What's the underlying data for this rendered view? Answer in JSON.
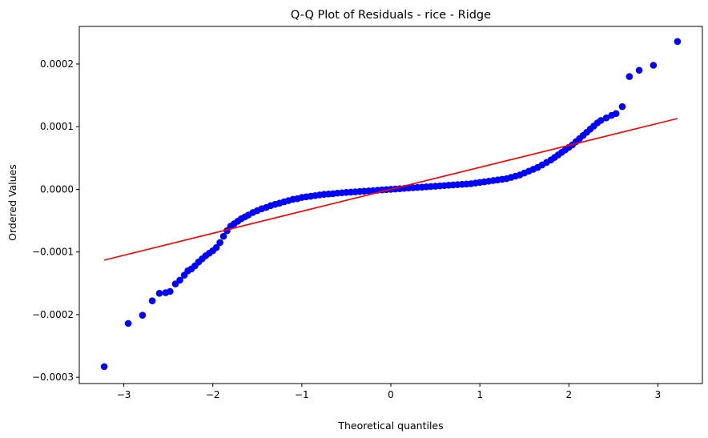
{
  "chart_data": {
    "type": "scatter",
    "title": "Q-Q Plot of Residuals - rice  - Ridge",
    "xlabel": "Theoretical quantiles",
    "ylabel": "Ordered Values",
    "xlim": [
      -3.5,
      3.5
    ],
    "ylim": [
      -0.00031,
      0.00026
    ],
    "x_ticks": [
      -3,
      -2,
      -1,
      0,
      1,
      2,
      3
    ],
    "x_tick_labels": [
      "−3",
      "−2",
      "−1",
      "0",
      "1",
      "2",
      "3"
    ],
    "y_ticks": [
      -0.0003,
      -0.0002,
      -0.0001,
      0.0,
      0.0001,
      0.0002
    ],
    "y_tick_labels": [
      "−0.0003",
      "−0.0002",
      "−0.0001",
      "0.0000",
      "0.0001",
      "0.0002"
    ],
    "grid": false,
    "legend": "none",
    "colors": {
      "points": "#0000ff",
      "fit_line": "#ff0000"
    },
    "series": [
      {
        "kind": "points",
        "x": [
          -3.22,
          -2.95,
          -2.79,
          -2.68,
          -2.6,
          -2.53,
          -2.48,
          -2.42,
          -2.37,
          -2.32,
          -2.28,
          -2.24,
          -2.2,
          -2.16,
          -2.12,
          -2.08,
          -2.04,
          -2.0,
          -1.96,
          -1.92,
          -1.88,
          -1.84,
          -1.8,
          -1.76,
          -1.72,
          -1.68,
          -1.64,
          -1.6,
          -1.55,
          -1.5,
          -1.45,
          -1.4,
          -1.35,
          -1.3,
          -1.25,
          -1.2,
          -1.15,
          -1.1,
          -1.05,
          -1.0,
          -0.95,
          -0.9,
          -0.85,
          -0.8,
          -0.75,
          -0.7,
          -0.65,
          -0.6,
          -0.55,
          -0.5,
          -0.45,
          -0.4,
          -0.35,
          -0.3,
          -0.25,
          -0.2,
          -0.15,
          -0.1,
          -0.05,
          0.0,
          0.05,
          0.1,
          0.15,
          0.2,
          0.25,
          0.3,
          0.35,
          0.4,
          0.45,
          0.5,
          0.55,
          0.6,
          0.65,
          0.7,
          0.75,
          0.8,
          0.85,
          0.9,
          0.95,
          1.0,
          1.05,
          1.1,
          1.15,
          1.2,
          1.25,
          1.3,
          1.35,
          1.4,
          1.45,
          1.5,
          1.55,
          1.6,
          1.65,
          1.7,
          1.75,
          1.8,
          1.84,
          1.88,
          1.92,
          1.96,
          2.0,
          2.04,
          2.08,
          2.12,
          2.16,
          2.2,
          2.24,
          2.28,
          2.32,
          2.36,
          2.42,
          2.48,
          2.53,
          2.6,
          2.68,
          2.79,
          2.95,
          3.22
        ],
        "y": [
          -0.000283,
          -0.000214,
          -0.000201,
          -0.000178,
          -0.000166,
          -0.000165,
          -0.000163,
          -0.000151,
          -0.000145,
          -0.000137,
          -0.00013,
          -0.000127,
          -0.000122,
          -0.000116,
          -0.000111,
          -0.000106,
          -0.000102,
          -9.8e-05,
          -9.3e-05,
          -8.5e-05,
          -7.5e-05,
          -6.6e-05,
          -5.9e-05,
          -5.5e-05,
          -5.1e-05,
          -4.7e-05,
          -4.4e-05,
          -4.1e-05,
          -3.7e-05,
          -3.4e-05,
          -3.1e-05,
          -2.9e-05,
          -2.6e-05,
          -2.4e-05,
          -2.2e-05,
          -2e-05,
          -1.8e-05,
          -1.6e-05,
          -1.5e-05,
          -1.3e-05,
          -1.2e-05,
          -1.1e-05,
          -1e-05,
          -9e-06,
          -8e-06,
          -7.5e-06,
          -7e-06,
          -6e-06,
          -5.5e-06,
          -5e-06,
          -4.5e-06,
          -4e-06,
          -3.5e-06,
          -3e-06,
          -2.5e-06,
          -2e-06,
          -1.5e-06,
          -1e-06,
          -5e-07,
          0.0,
          5e-07,
          1e-06,
          1.5e-06,
          2e-06,
          2.5e-06,
          3e-06,
          3.5e-06,
          4e-06,
          4.5e-06,
          5e-06,
          5.5e-06,
          6e-06,
          6.5e-06,
          7e-06,
          7.5e-06,
          8e-06,
          8.5e-06,
          9e-06,
          1e-05,
          1.1e-05,
          1.2e-05,
          1.3e-05,
          1.4e-05,
          1.5e-05,
          1.6e-05,
          1.7e-05,
          1.9e-05,
          2.1e-05,
          2.3e-05,
          2.6e-05,
          2.9e-05,
          3.2e-05,
          3.5e-05,
          3.9e-05,
          4.3e-05,
          4.7e-05,
          5.1e-05,
          5.5e-05,
          5.9e-05,
          6.3e-05,
          6.7e-05,
          7.1e-05,
          7.6e-05,
          8.1e-05,
          8.6e-05,
          9.1e-05,
          9.6e-05,
          0.000101,
          0.000106,
          0.00011,
          0.000114,
          0.000118,
          0.000121,
          0.000132,
          0.00018,
          0.00019,
          0.000198,
          0.000236
        ]
      },
      {
        "kind": "fit_line",
        "x": [
          -3.22,
          3.22
        ],
        "y": [
          -0.000113,
          0.000113
        ]
      }
    ]
  }
}
